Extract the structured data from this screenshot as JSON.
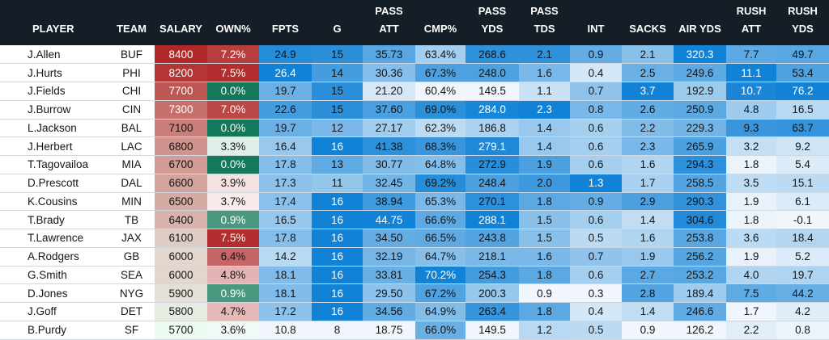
{
  "headers": {
    "player": "PLAYER",
    "team": "TEAM",
    "salary": "SALARY",
    "own": "OWN%",
    "fpts": "FPTS",
    "g": "G",
    "pass_att_1": "PASS",
    "pass_att_2": "ATT",
    "cmp": "CMP%",
    "pass_yds_1": "PASS",
    "pass_yds_2": "YDS",
    "pass_tds_1": "PASS",
    "pass_tds_2": "TDS",
    "int": "INT",
    "sacks": "SACKS",
    "air_yds": "AIR YDS",
    "rush_att_1": "RUSH",
    "rush_att_2": "ATT",
    "rush_yds_1": "RUSH",
    "rush_yds_2": "YDS"
  },
  "rows": [
    {
      "player": "J.Allen",
      "team": "BUF",
      "salary": "8400",
      "own": "7.2%",
      "fpts": "24.9",
      "g": "15",
      "pass_att": "35.73",
      "cmp": "63.4%",
      "pass_yds": "268.6",
      "pass_tds": "2.1",
      "int": "0.9",
      "sacks": "2.1",
      "air_yds": "320.3",
      "rush_att": "7.7",
      "rush_yds": "49.7"
    },
    {
      "player": "J.Hurts",
      "team": "PHI",
      "salary": "8200",
      "own": "7.5%",
      "fpts": "26.4",
      "g": "14",
      "pass_att": "30.36",
      "cmp": "67.3%",
      "pass_yds": "248.0",
      "pass_tds": "1.6",
      "int": "0.4",
      "sacks": "2.5",
      "air_yds": "249.6",
      "rush_att": "11.1",
      "rush_yds": "53.4"
    },
    {
      "player": "J.Fields",
      "team": "CHI",
      "salary": "7700",
      "own": "0.0%",
      "fpts": "19.7",
      "g": "15",
      "pass_att": "21.20",
      "cmp": "60.4%",
      "pass_yds": "149.5",
      "pass_tds": "1.1",
      "int": "0.7",
      "sacks": "3.7",
      "air_yds": "192.9",
      "rush_att": "10.7",
      "rush_yds": "76.2"
    },
    {
      "player": "J.Burrow",
      "team": "CIN",
      "salary": "7300",
      "own": "7.0%",
      "fpts": "22.6",
      "g": "15",
      "pass_att": "37.60",
      "cmp": "69.0%",
      "pass_yds": "284.0",
      "pass_tds": "2.3",
      "int": "0.8",
      "sacks": "2.6",
      "air_yds": "250.9",
      "rush_att": "4.8",
      "rush_yds": "16.5"
    },
    {
      "player": "L.Jackson",
      "team": "BAL",
      "salary": "7100",
      "own": "0.0%",
      "fpts": "19.7",
      "g": "12",
      "pass_att": "27.17",
      "cmp": "62.3%",
      "pass_yds": "186.8",
      "pass_tds": "1.4",
      "int": "0.6",
      "sacks": "2.2",
      "air_yds": "229.3",
      "rush_att": "9.3",
      "rush_yds": "63.7"
    },
    {
      "player": "J.Herbert",
      "team": "LAC",
      "salary": "6800",
      "own": "3.3%",
      "fpts": "16.4",
      "g": "16",
      "pass_att": "41.38",
      "cmp": "68.3%",
      "pass_yds": "279.1",
      "pass_tds": "1.4",
      "int": "0.6",
      "sacks": "2.3",
      "air_yds": "265.9",
      "rush_att": "3.2",
      "rush_yds": "9.2"
    },
    {
      "player": "T.Tagovailoa",
      "team": "MIA",
      "salary": "6700",
      "own": "0.0%",
      "fpts": "17.8",
      "g": "13",
      "pass_att": "30.77",
      "cmp": "64.8%",
      "pass_yds": "272.9",
      "pass_tds": "1.9",
      "int": "0.6",
      "sacks": "1.6",
      "air_yds": "294.3",
      "rush_att": "1.8",
      "rush_yds": "5.4"
    },
    {
      "player": "D.Prescott",
      "team": "DAL",
      "salary": "6600",
      "own": "3.9%",
      "fpts": "17.3",
      "g": "11",
      "pass_att": "32.45",
      "cmp": "69.2%",
      "pass_yds": "248.4",
      "pass_tds": "2.0",
      "int": "1.3",
      "sacks": "1.7",
      "air_yds": "258.5",
      "rush_att": "3.5",
      "rush_yds": "15.1"
    },
    {
      "player": "K.Cousins",
      "team": "MIN",
      "salary": "6500",
      "own": "3.7%",
      "fpts": "17.4",
      "g": "16",
      "pass_att": "38.94",
      "cmp": "65.3%",
      "pass_yds": "270.1",
      "pass_tds": "1.8",
      "int": "0.9",
      "sacks": "2.9",
      "air_yds": "290.3",
      "rush_att": "1.9",
      "rush_yds": "6.1"
    },
    {
      "player": "T.Brady",
      "team": "TB",
      "salary": "6400",
      "own": "0.9%",
      "fpts": "16.5",
      "g": "16",
      "pass_att": "44.75",
      "cmp": "66.6%",
      "pass_yds": "288.1",
      "pass_tds": "1.5",
      "int": "0.6",
      "sacks": "1.4",
      "air_yds": "304.6",
      "rush_att": "1.8",
      "rush_yds": "-0.1"
    },
    {
      "player": "T.Lawrence",
      "team": "JAX",
      "salary": "6100",
      "own": "7.5%",
      "fpts": "17.8",
      "g": "16",
      "pass_att": "34.50",
      "cmp": "66.5%",
      "pass_yds": "243.8",
      "pass_tds": "1.5",
      "int": "0.5",
      "sacks": "1.6",
      "air_yds": "253.8",
      "rush_att": "3.6",
      "rush_yds": "18.4"
    },
    {
      "player": "A.Rodgers",
      "team": "GB",
      "salary": "6000",
      "own": "6.4%",
      "fpts": "14.2",
      "g": "16",
      "pass_att": "32.19",
      "cmp": "64.7%",
      "pass_yds": "218.1",
      "pass_tds": "1.6",
      "int": "0.7",
      "sacks": "1.9",
      "air_yds": "256.2",
      "rush_att": "1.9",
      "rush_yds": "5.2"
    },
    {
      "player": "G.Smith",
      "team": "SEA",
      "salary": "6000",
      "own": "4.8%",
      "fpts": "18.1",
      "g": "16",
      "pass_att": "33.81",
      "cmp": "70.2%",
      "pass_yds": "254.3",
      "pass_tds": "1.8",
      "int": "0.6",
      "sacks": "2.7",
      "air_yds": "253.2",
      "rush_att": "4.0",
      "rush_yds": "19.7"
    },
    {
      "player": "D.Jones",
      "team": "NYG",
      "salary": "5900",
      "own": "0.9%",
      "fpts": "18.1",
      "g": "16",
      "pass_att": "29.50",
      "cmp": "67.2%",
      "pass_yds": "200.3",
      "pass_tds": "0.9",
      "int": "0.3",
      "sacks": "2.8",
      "air_yds": "189.4",
      "rush_att": "7.5",
      "rush_yds": "44.2"
    },
    {
      "player": "J.Goff",
      "team": "DET",
      "salary": "5800",
      "own": "4.7%",
      "fpts": "17.2",
      "g": "16",
      "pass_att": "34.56",
      "cmp": "64.9%",
      "pass_yds": "263.4",
      "pass_tds": "1.8",
      "int": "0.4",
      "sacks": "1.4",
      "air_yds": "246.6",
      "rush_att": "1.7",
      "rush_yds": "4.2"
    },
    {
      "player": "B.Purdy",
      "team": "SF",
      "salary": "5700",
      "own": "3.6%",
      "fpts": "10.8",
      "g": "8",
      "pass_att": "18.75",
      "cmp": "66.0%",
      "pass_yds": "149.5",
      "pass_tds": "1.2",
      "int": "0.5",
      "sacks": "0.9",
      "air_yds": "126.2",
      "rush_att": "2.2",
      "rush_yds": "0.8"
    }
  ]
}
